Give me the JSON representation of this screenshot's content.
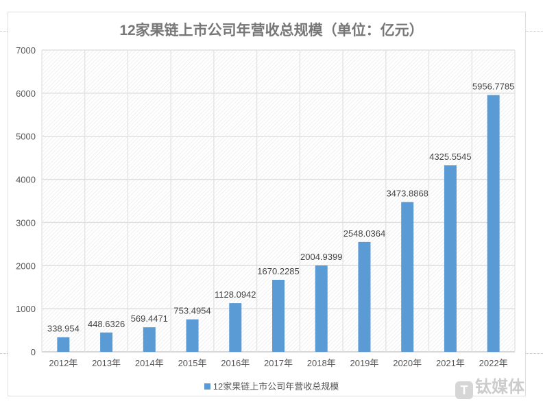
{
  "chart_data": {
    "type": "bar",
    "title": "12家果链上市公司年营收总规模（单位：亿元）",
    "categories": [
      "2012年",
      "2013年",
      "2014年",
      "2015年",
      "2016年",
      "2017年",
      "2018年",
      "2019年",
      "2020年",
      "2021年",
      "2022年"
    ],
    "series": [
      {
        "name": "12家果链上市公司年营收总规模",
        "values": [
          338.954,
          448.6326,
          569.4471,
          753.4954,
          1128.0942,
          1670.2285,
          2004.9399,
          2548.0364,
          3473.8868,
          4325.5545,
          5956.7785
        ],
        "color": "#5b9bd5"
      }
    ],
    "data_labels": [
      "338.954",
      "448.6326",
      "569.4471",
      "753.4954",
      "1128.0942",
      "1670.2285",
      "2004.9399",
      "2548.0364",
      "3473.8868",
      "4325.5545",
      "5956.7785"
    ],
    "ylim": [
      0,
      7000
    ],
    "yticks": [
      0,
      1000,
      2000,
      3000,
      4000,
      5000,
      6000,
      7000
    ],
    "grid": true,
    "legend": "bottom"
  },
  "watermark": "钛媒体"
}
